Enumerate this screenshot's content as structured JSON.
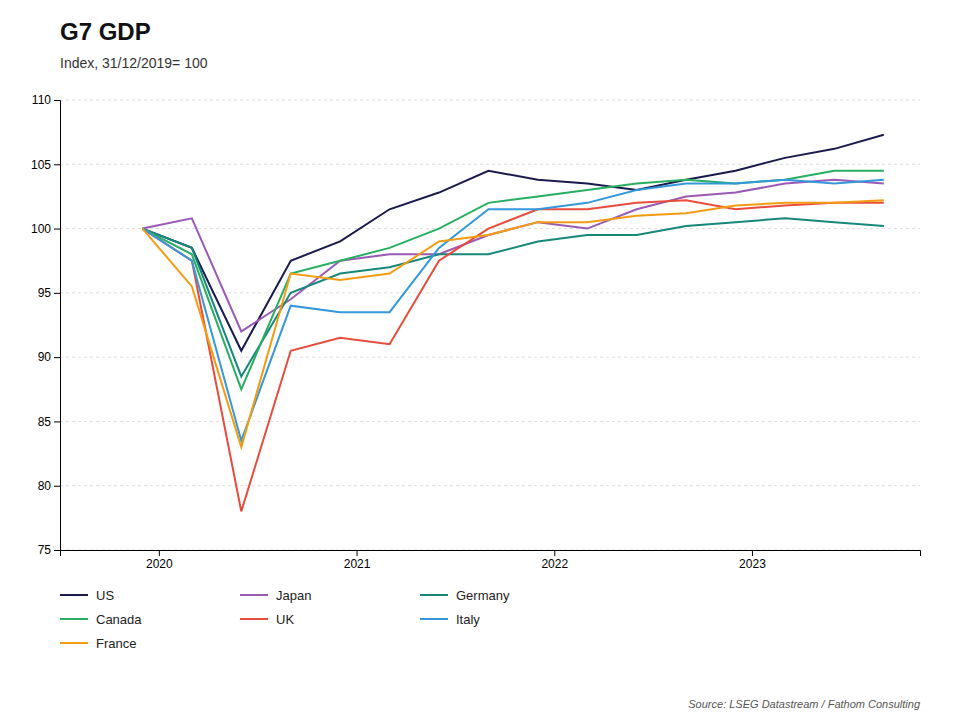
{
  "chart_data": {
    "type": "line",
    "title": "G7 GDP",
    "subtitle": "Index, 31/12/2019= 100",
    "source": "Source: LSEG Datastream / Fathom Consulting",
    "x": [
      2019.917,
      2020.167,
      2020.417,
      2020.667,
      2020.917,
      2021.167,
      2021.417,
      2021.667,
      2021.917,
      2022.167,
      2022.417,
      2022.667,
      2022.917,
      2023.167,
      2023.417,
      2023.667
    ],
    "xlim": [
      2019.5,
      2023.85
    ],
    "xticks": [
      2020,
      2021,
      2022,
      2023
    ],
    "ylim": [
      75,
      110
    ],
    "yticks": [
      75,
      80,
      85,
      90,
      95,
      100,
      105,
      110
    ],
    "grid": true,
    "legend": "bottom",
    "series": [
      {
        "name": "US",
        "color": "#1a1a4e",
        "values": [
          100.0,
          98.5,
          90.5,
          97.5,
          99.0,
          101.5,
          102.8,
          104.5,
          103.8,
          103.5,
          103.0,
          103.8,
          104.5,
          105.5,
          106.2,
          107.3
        ]
      },
      {
        "name": "Japan",
        "color": "#9b59b6",
        "values": [
          100.0,
          100.8,
          92.0,
          94.5,
          97.5,
          98.0,
          98.0,
          99.5,
          100.5,
          100.0,
          101.5,
          102.5,
          102.8,
          103.5,
          103.8,
          103.5
        ]
      },
      {
        "name": "Germany",
        "color": "#17877a",
        "values": [
          100.0,
          98.5,
          88.5,
          95.0,
          96.5,
          97.0,
          98.0,
          98.0,
          99.0,
          99.5,
          99.5,
          100.2,
          100.5,
          100.8,
          100.5,
          100.2
        ]
      },
      {
        "name": "Canada",
        "color": "#27ae60",
        "values": [
          100.0,
          98.0,
          87.5,
          96.5,
          97.5,
          98.5,
          100.0,
          102.0,
          102.5,
          103.0,
          103.5,
          103.8,
          103.5,
          103.8,
          104.5,
          104.5
        ]
      },
      {
        "name": "UK",
        "color": "#e74c3c",
        "values": [
          100.0,
          97.5,
          78.0,
          90.5,
          91.5,
          91.0,
          97.5,
          100.0,
          101.5,
          101.5,
          102.0,
          102.2,
          101.5,
          101.8,
          102.0,
          102.0
        ]
      },
      {
        "name": "Italy",
        "color": "#3498db",
        "values": [
          100.0,
          97.5,
          83.5,
          94.0,
          93.5,
          93.5,
          98.5,
          101.5,
          101.5,
          102.0,
          103.0,
          103.5,
          103.5,
          103.8,
          103.5,
          103.8
        ]
      },
      {
        "name": "France",
        "color": "#f39c12",
        "values": [
          100.0,
          95.5,
          83.0,
          96.5,
          96.0,
          96.5,
          99.0,
          99.5,
          100.5,
          100.5,
          101.0,
          101.2,
          101.8,
          102.0,
          102.0,
          102.2
        ]
      }
    ]
  }
}
